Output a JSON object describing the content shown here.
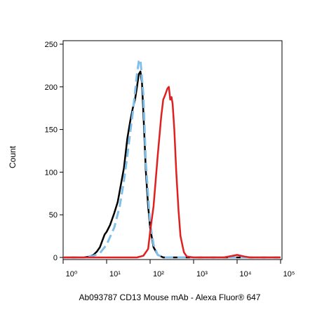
{
  "chart_data": {
    "type": "line",
    "x_label": "Ab093787 CD13 Mouse mAb - Alexa Fluor® 647",
    "y_label": "Count",
    "xscale": "log",
    "xlim": [
      1,
      100000
    ],
    "xticks": [
      {
        "value": 1,
        "label": "10⁰"
      },
      {
        "value": 10,
        "label": "10¹"
      },
      {
        "value": 100,
        "label": "10²"
      },
      {
        "value": 1000,
        "label": "10³"
      },
      {
        "value": 10000,
        "label": "10⁴"
      },
      {
        "value": 100000,
        "label": "10⁵"
      }
    ],
    "ylim": [
      0,
      250
    ],
    "yticks": [
      0,
      50,
      100,
      150,
      200,
      250
    ],
    "series": [
      {
        "color": "#000000",
        "dashed": false,
        "x": [
          1,
          2,
          3,
          4,
          5,
          6,
          7,
          8,
          9,
          10,
          12,
          15,
          18,
          20,
          25,
          30,
          35,
          40,
          45,
          50,
          55,
          60,
          65,
          70,
          80,
          90,
          100,
          120,
          150,
          200,
          300,
          1000,
          100000
        ],
        "values": [
          0,
          0,
          0,
          1,
          3,
          7,
          12,
          20,
          27,
          30,
          38,
          52,
          65,
          78,
          105,
          140,
          160,
          175,
          185,
          200,
          215,
          218,
          205,
          170,
          100,
          60,
          35,
          12,
          3,
          0,
          0,
          0,
          0
        ]
      },
      {
        "color": "#7fbfea",
        "dashed": true,
        "x": [
          1,
          3,
          5,
          7,
          10,
          15,
          20,
          25,
          30,
          40,
          50,
          55,
          60,
          70,
          80,
          100,
          120,
          150,
          200,
          1000,
          100000
        ],
        "values": [
          0,
          0,
          2,
          5,
          15,
          35,
          60,
          90,
          120,
          170,
          215,
          230,
          232,
          190,
          110,
          40,
          15,
          3,
          0,
          0,
          0
        ]
      },
      {
        "color": "#e02020",
        "dashed": false,
        "x": [
          1,
          50,
          70,
          90,
          100,
          120,
          150,
          180,
          200,
          220,
          250,
          270,
          290,
          310,
          330,
          360,
          400,
          450,
          500,
          600,
          700,
          1000,
          5000,
          8000,
          10000,
          15000,
          20000,
          100000
        ],
        "values": [
          0,
          0,
          2,
          10,
          30,
          60,
          120,
          165,
          185,
          190,
          198,
          200,
          185,
          188,
          180,
          150,
          100,
          55,
          25,
          6,
          1,
          0,
          0,
          2,
          3,
          1,
          0,
          0
        ]
      }
    ]
  }
}
